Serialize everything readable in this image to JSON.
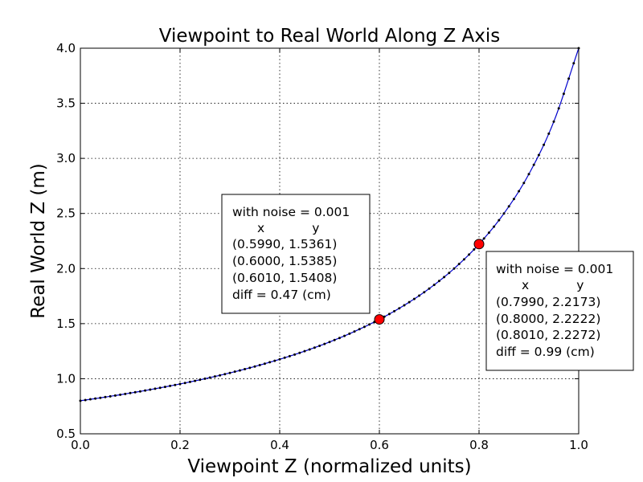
{
  "chart_data": {
    "type": "line",
    "title": "Viewpoint to Real World Along Z Axis",
    "xlabel": "Viewpoint Z (normalized units)",
    "ylabel": "Real World Z (m)",
    "xlim": [
      0.0,
      1.0
    ],
    "ylim": [
      0.5,
      4.0
    ],
    "x_ticks": [
      "0.0",
      "0.2",
      "0.4",
      "0.6",
      "0.8",
      "1.0"
    ],
    "y_ticks": [
      "0.5",
      "1.0",
      "1.5",
      "2.0",
      "2.5",
      "3.0",
      "3.5",
      "4.0"
    ],
    "grid": true,
    "series": [
      {
        "color": "#0000cc",
        "marker_color": "#000000",
        "x": [
          0.0,
          0.05,
          0.1,
          0.15,
          0.2,
          0.25,
          0.3,
          0.35,
          0.4,
          0.45,
          0.5,
          0.55,
          0.6,
          0.65,
          0.7,
          0.75,
          0.8,
          0.85,
          0.9,
          0.95,
          1.0
        ],
        "y": [
          0.8,
          0.8333,
          0.8696,
          0.9091,
          0.9524,
          1.0,
          1.0526,
          1.1111,
          1.1765,
          1.25,
          1.3333,
          1.4286,
          1.5385,
          1.6667,
          1.8182,
          2.0,
          2.2222,
          2.5,
          2.8571,
          3.3333,
          4.0
        ]
      }
    ],
    "highlight_points": [
      {
        "x": 0.6,
        "y": 1.5385,
        "color": "#ff0000"
      },
      {
        "x": 0.8,
        "y": 2.2222,
        "color": "#ff0000"
      }
    ],
    "annotations": [
      {
        "lines": [
          "with noise = 0.001",
          "x            y",
          "(0.5990, 1.5361)",
          "(0.6000, 1.5385)",
          "(0.6010, 1.5408)",
          "diff = 0.47 (cm)"
        ]
      },
      {
        "lines": [
          "with noise = 0.001",
          "x            y",
          "(0.7990, 2.2173)",
          "(0.8000, 2.2222)",
          "(0.8010, 2.2272)",
          "diff = 0.99 (cm)"
        ]
      }
    ]
  }
}
